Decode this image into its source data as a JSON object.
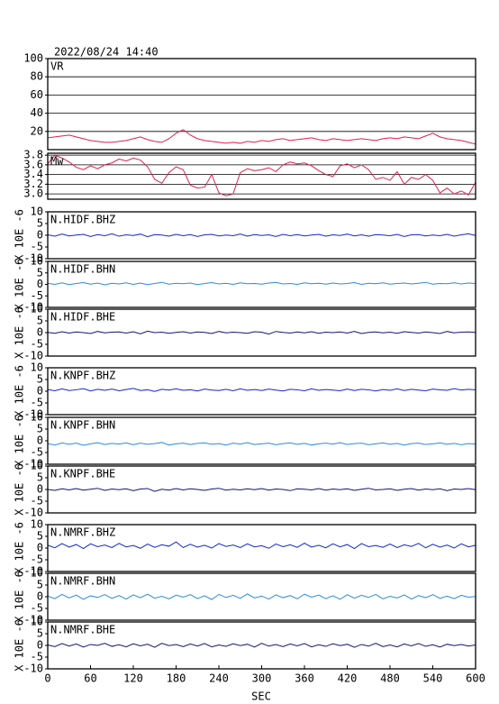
{
  "chart_data": {
    "type": "line",
    "title": "2022/08/24 14:40",
    "xlabel": "SEC",
    "xlim": [
      0,
      600
    ],
    "xticks": [
      0,
      60,
      120,
      180,
      240,
      300,
      360,
      420,
      480,
      540,
      600
    ],
    "x": [
      0,
      10,
      20,
      30,
      40,
      50,
      60,
      70,
      80,
      90,
      100,
      110,
      120,
      130,
      140,
      150,
      160,
      170,
      180,
      190,
      200,
      210,
      220,
      230,
      240,
      250,
      260,
      270,
      280,
      290,
      300,
      310,
      320,
      330,
      340,
      350,
      360,
      370,
      380,
      390,
      400,
      410,
      420,
      430,
      440,
      450,
      460,
      470,
      480,
      490,
      500,
      510,
      520,
      530,
      540,
      550,
      560,
      570,
      580,
      590,
      600
    ],
    "panels": [
      {
        "label": "VR",
        "ylim": [
          0,
          100
        ],
        "yticks": [
          20,
          40,
          60,
          80,
          100
        ],
        "grid": true,
        "series": [
          {
            "color": "#e0204a",
            "values": [
              13,
              14,
              15,
              16,
              14,
              12,
              10,
              9,
              8,
              8,
              9,
              10,
              12,
              14,
              11,
              9,
              8,
              12,
              18,
              22,
              16,
              12,
              10,
              9,
              8,
              7,
              8,
              7,
              9,
              8,
              10,
              9,
              11,
              12,
              10,
              11,
              12,
              13,
              11,
              10,
              12,
              11,
              10,
              11,
              12,
              11,
              10,
              12,
              13,
              12,
              14,
              13,
              12,
              15,
              18,
              14,
              12,
              11,
              10,
              8,
              6
            ]
          }
        ]
      },
      {
        "label": "Mw",
        "ylim": [
          2.89,
          3.84
        ],
        "yticks": [
          {
            "value": 3,
            "label": "3.0"
          },
          3.2,
          3.4,
          3.6,
          3.8
        ],
        "grid": true,
        "series": [
          {
            "color": "#e0204a",
            "values": [
              3.62,
              3.8,
              3.74,
              3.66,
              3.55,
              3.5,
              3.58,
              3.52,
              3.6,
              3.64,
              3.72,
              3.68,
              3.74,
              3.7,
              3.56,
              3.3,
              3.22,
              3.44,
              3.56,
              3.5,
              3.18,
              3.12,
              3.14,
              3.4,
              3.02,
              2.96,
              3.0,
              3.44,
              3.52,
              3.48,
              3.5,
              3.54,
              3.46,
              3.6,
              3.66,
              3.62,
              3.64,
              3.58,
              3.48,
              3.4,
              3.36,
              3.58,
              3.62,
              3.54,
              3.6,
              3.5,
              3.3,
              3.34,
              3.28,
              3.46,
              3.2,
              3.34,
              3.3,
              3.4,
              3.28,
              3.02,
              3.12,
              3.0,
              3.06,
              2.98,
              3.24
            ]
          }
        ]
      },
      {
        "label": "N.HIDF.BHZ",
        "ylabel": "X 10E -6",
        "ylim": [
          -10,
          10
        ],
        "yticks": [
          -10,
          -5,
          0,
          5,
          10
        ],
        "grid": false,
        "series": [
          {
            "color": "#1428c8",
            "values": [
              0.2,
              -0.4,
              0.5,
              -0.3,
              0.1,
              0.4,
              -0.5,
              0.3,
              -0.2,
              0.6,
              -0.4,
              0.2,
              -0.1,
              0.5,
              -0.6,
              0.3,
              0.1,
              -0.4,
              0.4,
              -0.2,
              0.3,
              -0.5,
              0.2,
              0.4,
              -0.3,
              0.1,
              -0.2,
              0.5,
              -0.4,
              0.3,
              -0.1,
              0.2,
              -0.5,
              0.4,
              -0.2,
              0.3,
              -0.3,
              0.1,
              0.4,
              -0.4,
              0.2,
              -0.1,
              0.5,
              -0.3,
              0.2,
              -0.4,
              0.3,
              0.1,
              -0.2,
              0.4,
              -0.5,
              0.2,
              0.3,
              -0.3,
              0.1,
              -0.2,
              0.4,
              -0.4,
              0.2,
              0.6,
              -0.1
            ]
          }
        ]
      },
      {
        "label": "N.HIDF.BHN",
        "ylabel": "X 10E -6",
        "ylim": [
          -10,
          10
        ],
        "yticks": [
          -10,
          -5,
          0,
          5,
          10
        ],
        "grid": false,
        "series": [
          {
            "color": "#2a8ce0",
            "values": [
              0.5,
              0.0,
              0.7,
              -0.1,
              0.4,
              0.8,
              0.1,
              0.6,
              -0.2,
              0.5,
              0.2,
              0.7,
              0.0,
              0.6,
              -0.1,
              0.4,
              0.9,
              0.1,
              0.5,
              0.3,
              0.6,
              -0.1,
              0.4,
              0.8,
              0.2,
              0.5,
              0.0,
              0.7,
              0.3,
              0.4,
              0.1,
              0.6,
              0.9,
              0.2,
              0.4,
              0.0,
              0.7,
              0.3,
              0.5,
              0.1,
              0.6,
              0.2,
              0.4,
              0.8,
              0.0,
              0.5,
              0.3,
              0.7,
              0.1,
              0.4,
              0.6,
              0.2,
              0.5,
              0.9,
              0.1,
              0.4,
              0.3,
              0.7,
              0.2,
              0.6,
              0.4
            ]
          }
        ]
      },
      {
        "label": "N.HIDF.BHE",
        "ylabel": "X 10E -6",
        "ylim": [
          -10,
          10
        ],
        "yticks": [
          -10,
          -5,
          0,
          5,
          10
        ],
        "grid": false,
        "series": [
          {
            "color": "#141478",
            "values": [
              0.1,
              -0.3,
              0.4,
              -0.2,
              0.3,
              0.0,
              -0.4,
              0.5,
              -0.1,
              0.2,
              0.3,
              -0.2,
              0.4,
              -0.5,
              0.6,
              0.0,
              0.2,
              -0.3,
              0.1,
              0.4,
              -0.2,
              0.3,
              0.1,
              -0.4,
              0.5,
              -0.1,
              0.2,
              0.0,
              -0.3,
              0.4,
              0.2,
              -0.6,
              0.5,
              0.1,
              -0.2,
              0.3,
              -0.1,
              0.4,
              -0.3,
              0.2,
              0.0,
              0.3,
              -0.2,
              0.5,
              -0.4,
              0.1,
              0.3,
              -0.1,
              0.2,
              -0.3,
              0.4,
              0.1,
              -0.2,
              0.3,
              0.0,
              -0.4,
              0.5,
              -0.1,
              0.2,
              0.3,
              0.1
            ]
          }
        ]
      },
      {
        "label": "N.KNPF.BHZ",
        "ylabel": "X 10E -6",
        "ylim": [
          -10,
          10
        ],
        "yticks": [
          -10,
          -5,
          0,
          5,
          10
        ],
        "grid": false,
        "series": [
          {
            "color": "#1428c8",
            "values": [
              0.7,
              0.2,
              1.0,
              0.3,
              0.6,
              1.1,
              0.1,
              0.8,
              0.4,
              0.9,
              0.2,
              0.7,
              1.2,
              0.3,
              0.6,
              -0.1,
              0.8,
              0.5,
              1.0,
              0.4,
              0.6,
              0.1,
              0.9,
              0.5,
              0.3,
              0.8,
              0.2,
              1.0,
              0.4,
              0.7,
              0.3,
              0.9,
              0.5,
              0.1,
              0.8,
              0.6,
              0.2,
              1.0,
              0.4,
              0.7,
              0.5,
              0.2,
              0.9,
              0.3,
              0.8,
              0.6,
              0.1,
              0.7,
              0.4,
              1.0,
              0.3,
              0.8,
              0.5,
              0.2,
              0.9,
              0.6,
              0.4,
              1.1,
              0.5,
              0.8,
              0.6
            ]
          }
        ]
      },
      {
        "label": "N.KNPF.BHN",
        "ylabel": "X 10E -6",
        "ylim": [
          -10,
          10
        ],
        "yticks": [
          -10,
          -5,
          0,
          5,
          10
        ],
        "grid": false,
        "series": [
          {
            "color": "#2a8ce0",
            "values": [
              -1.2,
              -1.8,
              -0.9,
              -1.5,
              -1.0,
              -1.9,
              -1.3,
              -0.8,
              -1.6,
              -1.1,
              -1.4,
              -0.9,
              -1.7,
              -1.0,
              -1.5,
              -1.2,
              -0.7,
              -1.8,
              -1.3,
              -1.0,
              -1.6,
              -1.1,
              -0.9,
              -1.5,
              -1.2,
              -1.8,
              -1.0,
              -1.4,
              -0.8,
              -1.6,
              -1.3,
              -1.0,
              -1.7,
              -1.2,
              -0.9,
              -1.5,
              -1.1,
              -1.8,
              -1.3,
              -1.0,
              -1.4,
              -0.8,
              -1.6,
              -1.2,
              -1.0,
              -1.7,
              -1.3,
              -0.9,
              -1.5,
              -1.1,
              -1.8,
              -1.2,
              -1.0,
              -1.6,
              -1.3,
              -0.9,
              -1.5,
              -1.1,
              -1.7,
              -1.2,
              -1.4
            ]
          }
        ]
      },
      {
        "label": "N.KNPF.BHE",
        "ylabel": "X 10E -6",
        "ylim": [
          -10,
          10
        ],
        "yticks": [
          -10,
          -5,
          0,
          5,
          10
        ],
        "grid": false,
        "series": [
          {
            "color": "#141478",
            "values": [
              0.0,
              -0.4,
              0.3,
              -0.2,
              0.4,
              -0.3,
              0.1,
              0.5,
              -0.4,
              0.2,
              -0.1,
              0.3,
              -0.5,
              0.2,
              0.4,
              -0.8,
              0.1,
              -0.3,
              0.4,
              -0.2,
              0.3,
              0.0,
              -0.4,
              0.2,
              0.5,
              -0.3,
              0.1,
              -0.2,
              0.3,
              -0.1,
              0.4,
              -0.3,
              0.2,
              0.0,
              -0.5,
              0.3,
              0.1,
              -0.2,
              0.4,
              -0.3,
              0.2,
              -0.1,
              0.3,
              -0.4,
              0.1,
              0.5,
              -0.2,
              0.0,
              0.3,
              -0.4,
              0.1,
              0.4,
              -0.3,
              0.2,
              -0.1,
              0.3,
              -0.5,
              0.2,
              0.0,
              0.4,
              -0.1
            ]
          }
        ]
      },
      {
        "label": "N.NMRF.BHZ",
        "ylabel": "X 10E -6",
        "ylim": [
          -10,
          10
        ],
        "yticks": [
          -10,
          -5,
          0,
          5,
          10
        ],
        "grid": false,
        "series": [
          {
            "color": "#1428c8",
            "values": [
              1.2,
              0.1,
              1.9,
              0.4,
              1.5,
              -0.2,
              1.8,
              0.6,
              1.3,
              0.2,
              2.0,
              0.5,
              1.1,
              -0.1,
              1.7,
              0.3,
              1.4,
              0.8,
              2.6,
              0.2,
              1.6,
              0.4,
              1.2,
              0.0,
              1.9,
              0.7,
              1.3,
              0.2,
              1.8,
              0.5,
              1.0,
              -0.1,
              1.7,
              0.6,
              1.4,
              0.3,
              2.1,
              0.4,
              1.2,
              0.1,
              1.8,
              0.5,
              1.5,
              -0.2,
              1.9,
              0.6,
              1.1,
              0.3,
              1.7,
              0.2,
              1.4,
              0.7,
              2.0,
              0.1,
              1.6,
              0.4,
              1.3,
              0.0,
              1.8,
              0.5,
              1.2
            ]
          }
        ]
      },
      {
        "label": "N.NMRF.BHN",
        "ylabel": "X 10E -6",
        "ylim": [
          -10,
          10
        ],
        "yticks": [
          -10,
          -5,
          0,
          5,
          10
        ],
        "grid": false,
        "series": [
          {
            "color": "#2a8ce0",
            "values": [
              0.3,
              -0.8,
              1.0,
              -0.5,
              0.7,
              -1.1,
              0.4,
              -0.3,
              0.9,
              -0.7,
              0.5,
              -1.0,
              0.8,
              -0.4,
              1.1,
              -0.6,
              0.2,
              -0.9,
              0.7,
              -0.2,
              0.9,
              -0.8,
              0.4,
              -1.2,
              1.0,
              -0.3,
              0.6,
              -0.7,
              1.2,
              -0.5,
              0.3,
              -1.0,
              0.8,
              -0.4,
              0.5,
              -0.9,
              1.1,
              -0.2,
              0.7,
              -0.8,
              0.4,
              -1.1,
              0.9,
              -0.6,
              0.6,
              -0.3,
              1.0,
              -0.9,
              0.2,
              -0.5,
              0.8,
              -1.0,
              0.5,
              -0.4,
              0.9,
              -0.7,
              0.3,
              -0.8,
              0.6,
              -0.2,
              0.1
            ]
          }
        ]
      },
      {
        "label": "N.NMRF.BHE",
        "ylabel": "X 10E -6",
        "ylim": [
          -10,
          10
        ],
        "yticks": [
          -10,
          -5,
          0,
          5,
          10
        ],
        "grid": false,
        "series": [
          {
            "color": "#141478",
            "values": [
              0.2,
              -0.5,
              0.8,
              -0.3,
              0.6,
              -0.7,
              0.4,
              0.0,
              0.9,
              -0.4,
              0.3,
              -0.6,
              0.7,
              -0.2,
              0.5,
              -0.8,
              0.9,
              -0.1,
              0.4,
              -0.5,
              0.6,
              -0.3,
              0.8,
              -0.6,
              0.2,
              -0.4,
              0.7,
              -0.1,
              0.5,
              -0.7,
              0.9,
              -0.3,
              0.4,
              -0.5,
              0.6,
              -0.2,
              0.8,
              -0.6,
              0.3,
              -0.4,
              0.7,
              -0.1,
              0.5,
              -0.8,
              0.4,
              -0.3,
              0.9,
              -0.5,
              0.2,
              -0.6,
              0.6,
              -0.2,
              0.8,
              -0.4,
              0.3,
              -0.7,
              0.5,
              -0.1,
              0.4,
              -0.3,
              0.2
            ]
          }
        ]
      }
    ]
  }
}
